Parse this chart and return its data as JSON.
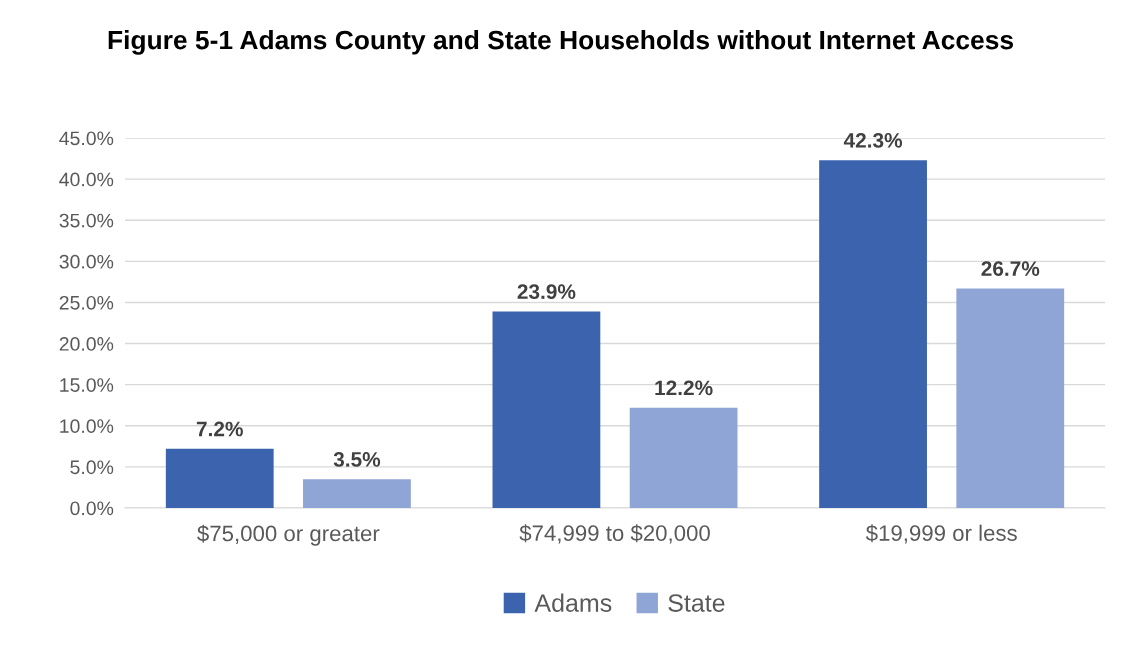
{
  "chart_data": {
    "type": "bar",
    "title": "Figure 5-1 Adams County and State Households without Internet Access",
    "categories": [
      "$75,000 or greater",
      "$74,999 to $20,000",
      "$19,999 or less"
    ],
    "series": [
      {
        "name": "Adams",
        "color": "#3c63ae",
        "values": [
          7.2,
          23.9,
          42.3
        ],
        "value_labels": [
          "7.2%",
          "23.9%",
          "42.3%"
        ]
      },
      {
        "name": "State",
        "color": "#8fa5d6",
        "values": [
          3.5,
          12.2,
          26.7
        ],
        "value_labels": [
          "3.5%",
          "12.2%",
          "26.7%"
        ]
      }
    ],
    "ylim": [
      0,
      45
    ],
    "yticks": [
      {
        "value": 0,
        "label": "0.0%"
      },
      {
        "value": 5,
        "label": "5.0%"
      },
      {
        "value": 10,
        "label": "10.0%"
      },
      {
        "value": 15,
        "label": "15.0%"
      },
      {
        "value": 20,
        "label": "20.0%"
      },
      {
        "value": 25,
        "label": "25.0%"
      },
      {
        "value": 30,
        "label": "30.0%"
      },
      {
        "value": 35,
        "label": "35.0%"
      },
      {
        "value": 40,
        "label": "40.0%"
      },
      {
        "value": 45,
        "label": "45.0%"
      }
    ],
    "grid": "y",
    "legend": "bottom"
  }
}
